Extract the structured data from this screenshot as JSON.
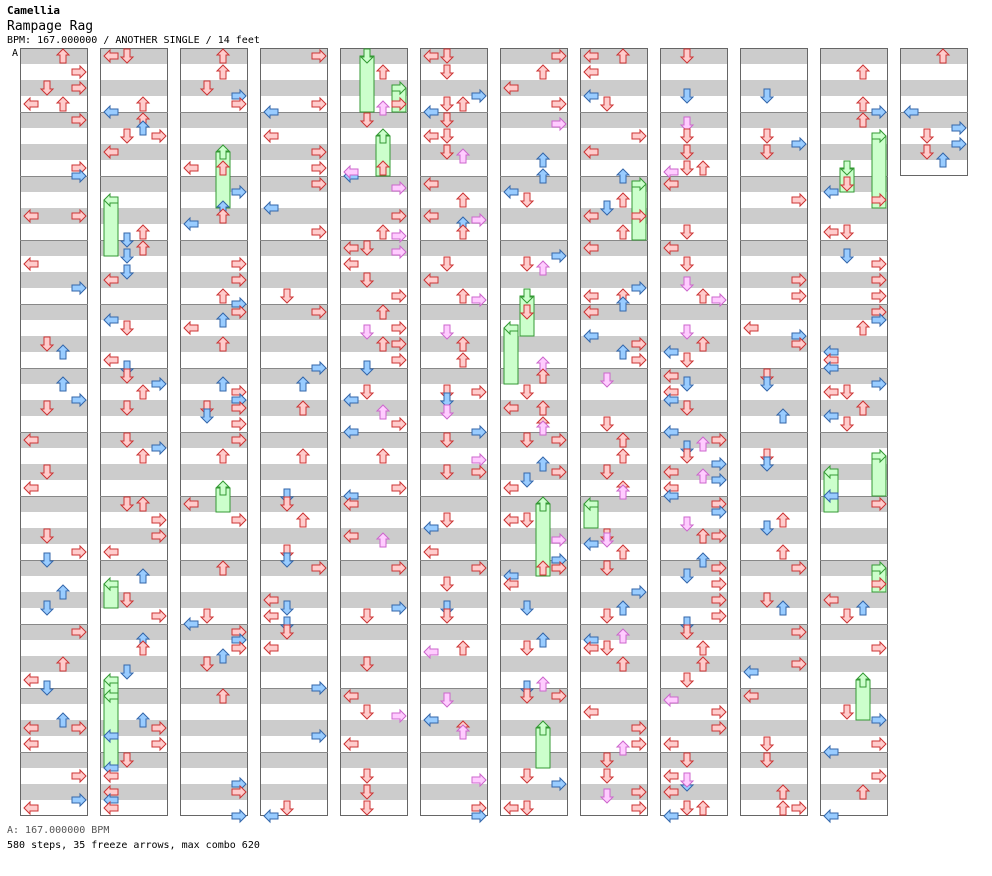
{
  "header": {
    "artist": "Camellia",
    "title": "Rampage Rag",
    "meta": "BPM: 167.000000 / ANOTHER SINGLE / 14 feet",
    "bpm_marker": "A"
  },
  "footer": {
    "bpm": "A: 167.000000 BPM",
    "stats": "580 steps, 35 freeze arrows, max combo 620"
  },
  "colors": {
    "stripe": "#cccccc",
    "red_fill": "#ffcccc",
    "red_stroke": "#cc3333",
    "blue_fill": "#99ccff",
    "blue_stroke": "#3366aa",
    "pink_fill": "#ffccff",
    "pink_stroke": "#cc66cc",
    "freeze_fill": "#ccffcc",
    "freeze_stroke": "#339933"
  },
  "chart_data": {
    "type": "step-chart",
    "columns": 12,
    "measures_per_column": 12,
    "lanes": [
      "left",
      "down",
      "up",
      "right"
    ],
    "steps": 580,
    "freeze_arrows": 35,
    "max_combo": 620
  }
}
